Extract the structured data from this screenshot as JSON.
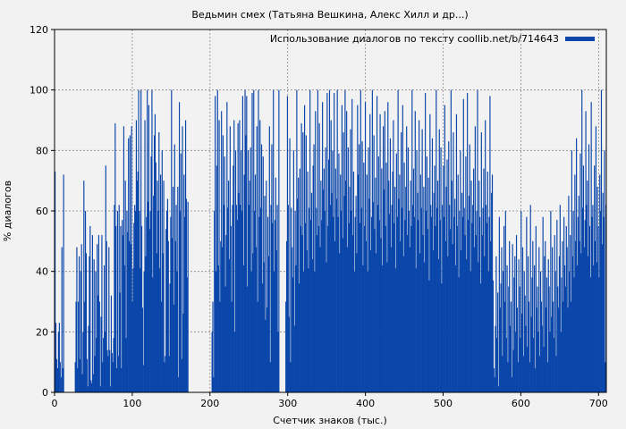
{
  "chart_data": {
    "type": "bar",
    "title": "Ведьмин смех (Татьяна Вешкина, Алекс Хилл и др...)",
    "xlabel": "Счетчик знаков (тыс.)",
    "ylabel": "% диалогов",
    "xlim": [
      0,
      710
    ],
    "ylim": [
      0,
      120
    ],
    "x_ticks": [
      "0",
      "100",
      "200",
      "300",
      "400",
      "500",
      "600",
      "700"
    ],
    "y_ticks": [
      "0",
      "20",
      "40",
      "60",
      "80",
      "100",
      "120"
    ],
    "grid": true,
    "legend_position": "top-right",
    "series": [
      {
        "name": "Использование диалогов по тексту coollib.net/b/714643",
        "color": "#0a46aa",
        "bin_width_k": 1,
        "segments": [
          {
            "x0": 0,
            "x1": 11,
            "values": [
              73,
              23,
              11,
              8,
              20,
              23,
              10,
              5,
              48,
              8,
              72
            ]
          },
          {
            "x0": 26,
            "x1": 171,
            "values": [
              10,
              30,
              48,
              8,
              30,
              45,
              11,
              40,
              49,
              6,
              20,
              70,
              30,
              60,
              46,
              11,
              2,
              22,
              45,
              55,
              4,
              3,
              52,
              6,
              44,
              12,
              40,
              18,
              49,
              32,
              52,
              30,
              2,
              25,
              52,
              10,
              18,
              42,
              20,
              75,
              50,
              14,
              12,
              48,
              14,
              2,
              32,
              13,
              10,
              18,
              62,
              89,
              55,
              8,
              60,
              12,
              62,
              33,
              55,
              8,
              57,
              52,
              88,
              42,
              70,
              18,
              60,
              53,
              84,
              50,
              85,
              49,
              88,
              30,
              41,
              56,
              62,
              60,
              90,
              70,
              73,
              100,
              60,
              41,
              100,
              55,
              28,
              9,
              40,
              90,
              45,
              58,
              100,
              63,
              95,
              54,
              60,
              78,
              100,
              38,
              65,
              85,
              92,
              76,
              46,
              70,
              60,
              86,
              41,
              72,
              30,
              80,
              46,
              70,
              10,
              12,
              54,
              60,
              64,
              50,
              12,
              36,
              58,
              100,
              51,
              68,
              29,
              82,
              50,
              62,
              40,
              68,
              5,
              96,
              60,
              79,
              11,
              88,
              26,
              72,
              58,
              90,
              64,
              38,
              63
            ]
          },
          {
            "x0": 202,
            "x1": 288,
            "values": [
              20,
              30,
              5,
              60,
              98,
              40,
              75,
              100,
              42,
              90,
              30,
              50,
              93,
              48,
              85,
              62,
              78,
              35,
              52,
              96,
              61,
              70,
              44,
              88,
              55,
              30,
              62,
              75,
              90,
              20,
              80,
              62,
              57,
              89,
              66,
              90,
              62,
              80,
              60,
              98,
              42,
              72,
              100,
              85,
              98,
              35,
              80,
              62,
              70,
              81,
              40,
              99,
              46,
              100,
              60,
              72,
              48,
              88,
              30,
              100,
              58,
              90,
              61,
              82,
              36,
              78,
              43,
              65,
              24,
              70,
              28,
              58,
              45,
              88,
              10,
              62,
              82,
              56,
              100,
              40,
              57,
              71,
              47,
              62,
              20,
              100
            ]
          },
          {
            "x0": 297,
            "x1": 709,
            "values": [
              30,
              50,
              98,
              62,
              25,
              84,
              10,
              61,
              48,
              38,
              80,
              22,
              60,
              42,
              100,
              64,
              71,
              36,
              74,
              55,
              89,
              52,
              86,
              40,
              95,
              56,
              85,
              47,
              73,
              41,
              61,
              100,
              57,
              66,
              44,
              75,
              82,
              40,
              93,
              61,
              52,
              100,
              55,
              89,
              48,
              70,
              57,
              96,
              67,
              74,
              60,
              81,
              43,
              99,
              55,
              77,
              100,
              62,
              90,
              66,
              80,
              58,
              99,
              50,
              74,
              64,
              100,
              58,
              79,
              46,
              72,
              60,
              95,
              51,
              86,
              65,
              100,
              70,
              93,
              48,
              81,
              56,
              68,
              87,
              60,
              97,
              52,
              73,
              40,
              58,
              65,
              46,
              95,
              72,
              82,
              56,
              100,
              61,
              83,
              42,
              76,
              55,
              96,
              50,
              72,
              40,
              81,
              64,
              92,
              47,
              58,
              100,
              63,
              85,
              54,
              71,
              46,
              98,
              62,
              78,
              57,
              92,
              51,
              74,
              42,
              88,
              67,
              93,
              55,
              76,
              43,
              96,
              70,
              59,
              84,
              48,
              62,
              73,
              90,
              56,
              68,
              41,
              79,
              58,
              100,
              64,
              72,
              50,
              86,
              61,
              95,
              45,
              76,
              57,
              68,
              88,
              52,
              81,
              60,
              48,
              70,
              55,
              100,
              62,
              74,
              58,
              93,
              41,
              80,
              66,
              57,
              90,
              46,
              72,
              61,
              87,
              52,
              68,
              43,
              99,
              60,
              78,
              54,
              71,
              37,
              92,
              62,
              58,
              84,
              47,
              66,
              75,
              55,
              100,
              61,
              70,
              44,
              87,
              57,
              81,
              36,
              62,
              75,
              58,
              95,
              50,
              68,
              77,
              45,
              83,
              62,
              54,
              100,
              70,
              49,
              86,
              58,
              64,
              42,
              92,
              55,
              72,
              38,
              60,
              80,
              47,
              66,
              58,
              97,
              61,
              52,
              78,
              44,
              99,
              57,
              65,
              82,
              40,
              70,
              56,
              62,
              74,
              48,
              88,
              52,
              60,
              100,
              43,
              70,
              58,
              36,
              86,
              52,
              61,
              74,
              45,
              90,
              62,
              56,
              73,
              40,
              58,
              98,
              50,
              66,
              72,
              37,
              8,
              5,
              22,
              45,
              18,
              33,
              2,
              58,
              28,
              36,
              48,
              12,
              40,
              55,
              30,
              60,
              18,
              42,
              10,
              35,
              50,
              22,
              30,
              5,
              49,
              14,
              38,
              45,
              20,
              52,
              28,
              10,
              44,
              35,
              18,
              60,
              26,
              48,
              12,
              40,
              32,
              22,
              58,
              15,
              45,
              30,
              10,
              62,
              25,
              38,
              50,
              18,
              42,
              8,
              55,
              28,
              35,
              20,
              48,
              12,
              40,
              30,
              22,
              58,
              15,
              45,
              50,
              28,
              38,
              10,
              44,
              35,
              20,
              60,
              25,
              48,
              30,
              18,
              52,
              40,
              12,
              57,
              35,
              28,
              45,
              62,
              20,
              38,
              50,
              30,
              58,
              42,
              35,
              55,
              48,
              28,
              65,
              40,
              52,
              30,
              80,
              45,
              60,
              38,
              72,
              50,
              84,
              42,
              58,
              65,
              50,
              79,
              46,
              100,
              61,
              75,
              48,
              57,
              93,
              62,
              70,
              45,
              82,
              55,
              38,
              96,
              58,
              62,
              42,
              75,
              50,
              88,
              43,
              68,
              55,
              38,
              72,
              60,
              100,
              49,
              66,
              58,
              80,
              10,
              62
            ]
          }
        ]
      }
    ]
  }
}
